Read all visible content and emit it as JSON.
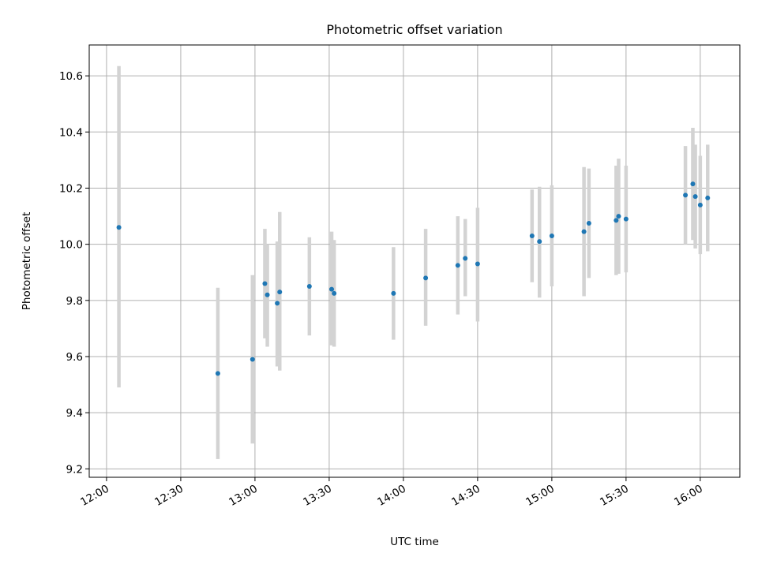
{
  "chart_data": {
    "type": "scatter",
    "title": "Photometric offset variation",
    "xlabel": "UTC time",
    "ylabel": "Photometric offset",
    "x_tick_labels": [
      "12:00",
      "12:30",
      "13:00",
      "13:30",
      "14:00",
      "14:30",
      "15:00",
      "15:30",
      "16:00"
    ],
    "y_tick_labels": [
      "9.2",
      "9.4",
      "9.6",
      "9.8",
      "10.0",
      "10.2",
      "10.4",
      "10.6"
    ],
    "xlim": [
      "11:53",
      "16:16"
    ],
    "ylim": [
      9.17,
      10.71
    ],
    "grid": true,
    "colors": {
      "points": "#1f77b4",
      "error_bars": "#d3d3d3"
    },
    "series": [
      {
        "points": [
          {
            "x": "12:05",
            "y": 10.06,
            "ylow": 9.49,
            "yhigh": 10.635
          },
          {
            "x": "12:45",
            "y": 9.54,
            "ylow": 9.235,
            "yhigh": 9.845
          },
          {
            "x": "12:59",
            "y": 9.59,
            "ylow": 9.29,
            "yhigh": 9.89
          },
          {
            "x": "13:04",
            "y": 9.86,
            "ylow": 9.665,
            "yhigh": 10.055
          },
          {
            "x": "13:05",
            "y": 9.82,
            "ylow": 9.635,
            "yhigh": 10.0
          },
          {
            "x": "13:09",
            "y": 9.79,
            "ylow": 9.565,
            "yhigh": 10.01
          },
          {
            "x": "13:10",
            "y": 9.83,
            "ylow": 9.55,
            "yhigh": 10.115
          },
          {
            "x": "13:22",
            "y": 9.85,
            "ylow": 9.675,
            "yhigh": 10.025
          },
          {
            "x": "13:31",
            "y": 9.84,
            "ylow": 9.64,
            "yhigh": 10.045
          },
          {
            "x": "13:32",
            "y": 9.825,
            "ylow": 9.635,
            "yhigh": 10.015
          },
          {
            "x": "13:56",
            "y": 9.825,
            "ylow": 9.66,
            "yhigh": 9.99
          },
          {
            "x": "14:09",
            "y": 9.88,
            "ylow": 9.71,
            "yhigh": 10.055
          },
          {
            "x": "14:22",
            "y": 9.925,
            "ylow": 9.75,
            "yhigh": 10.1
          },
          {
            "x": "14:25",
            "y": 9.95,
            "ylow": 9.815,
            "yhigh": 10.09
          },
          {
            "x": "14:30",
            "y": 9.93,
            "ylow": 9.725,
            "yhigh": 10.13
          },
          {
            "x": "14:52",
            "y": 10.03,
            "ylow": 9.865,
            "yhigh": 10.195
          },
          {
            "x": "14:55",
            "y": 10.01,
            "ylow": 9.81,
            "yhigh": 10.205
          },
          {
            "x": "15:00",
            "y": 10.03,
            "ylow": 9.85,
            "yhigh": 10.21
          },
          {
            "x": "15:13",
            "y": 10.045,
            "ylow": 9.815,
            "yhigh": 10.275
          },
          {
            "x": "15:15",
            "y": 10.075,
            "ylow": 9.88,
            "yhigh": 10.27
          },
          {
            "x": "15:26",
            "y": 10.085,
            "ylow": 9.89,
            "yhigh": 10.28
          },
          {
            "x": "15:27",
            "y": 10.1,
            "ylow": 9.895,
            "yhigh": 10.305
          },
          {
            "x": "15:30",
            "y": 10.09,
            "ylow": 9.9,
            "yhigh": 10.28
          },
          {
            "x": "15:54",
            "y": 10.175,
            "ylow": 10.0,
            "yhigh": 10.35
          },
          {
            "x": "15:57",
            "y": 10.215,
            "ylow": 10.015,
            "yhigh": 10.415
          },
          {
            "x": "15:58",
            "y": 10.17,
            "ylow": 9.985,
            "yhigh": 10.355
          },
          {
            "x": "16:00",
            "y": 10.14,
            "ylow": 9.965,
            "yhigh": 10.315
          },
          {
            "x": "16:03",
            "y": 10.165,
            "ylow": 9.975,
            "yhigh": 10.355
          }
        ]
      }
    ]
  }
}
